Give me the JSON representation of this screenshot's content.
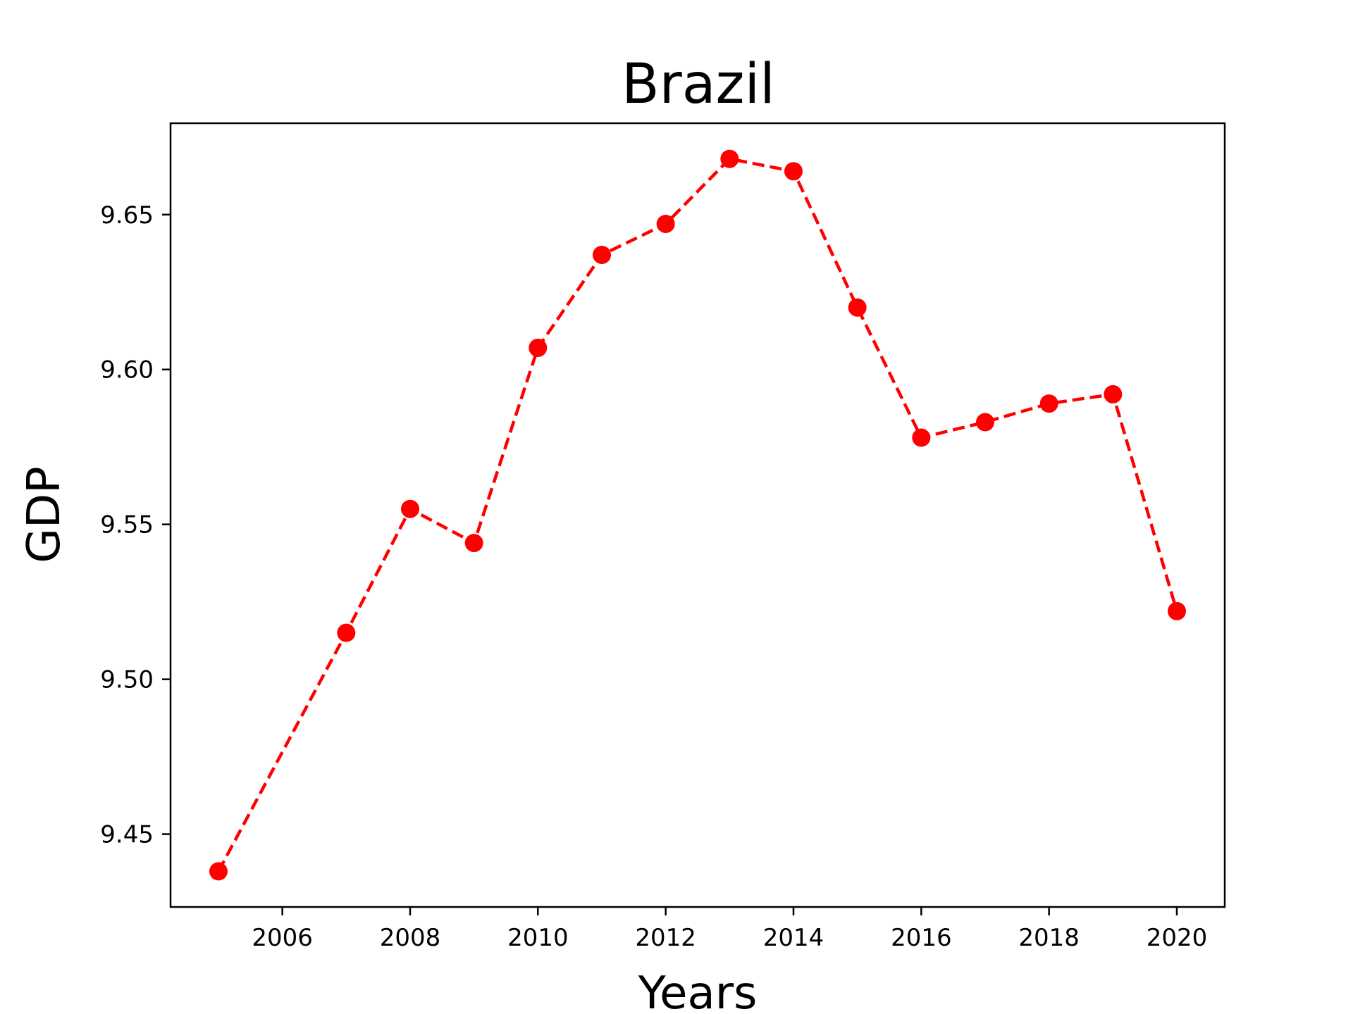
{
  "chart_data": {
    "type": "line",
    "title": "Brazil",
    "xlabel": "Years",
    "ylabel": "GDP",
    "xlim": [
      2004.25,
      2020.75
    ],
    "ylim": [
      9.4265,
      9.6795
    ],
    "xticks": [
      2006,
      2008,
      2010,
      2012,
      2014,
      2016,
      2018,
      2020
    ],
    "xtick_labels": [
      "2006",
      "2008",
      "2010",
      "2012",
      "2014",
      "2016",
      "2018",
      "2020"
    ],
    "yticks": [
      9.45,
      9.5,
      9.55,
      9.6,
      9.65
    ],
    "ytick_labels": [
      "9.45",
      "9.50",
      "9.55",
      "9.60",
      "9.65"
    ],
    "grid": false,
    "line_style": "dashed",
    "marker": "circle",
    "color": "#ff0000",
    "series": [
      {
        "x": [
          2005,
          2007,
          2008,
          2009,
          2010,
          2011,
          2012,
          2013,
          2014,
          2015,
          2016,
          2017,
          2018,
          2019,
          2020
        ],
        "values": [
          9.438,
          9.515,
          9.555,
          9.544,
          9.607,
          9.637,
          9.647,
          9.668,
          9.664,
          9.62,
          9.578,
          9.583,
          9.589,
          9.592,
          9.522
        ]
      }
    ]
  }
}
